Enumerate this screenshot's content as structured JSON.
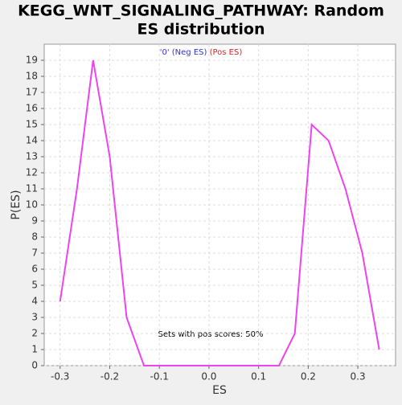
{
  "chart_data": {
    "type": "line",
    "title": [
      "KEGG_WNT_SIGNALING_PATHWAY: Random",
      "ES distribution"
    ],
    "legend": [
      {
        "label": "'0' (Neg ES)",
        "color": "#3333cc"
      },
      {
        "label": "(Pos ES)",
        "color": "#dd2222"
      }
    ],
    "annotation": "Sets with pos scores: 50%",
    "xlabel": "ES",
    "ylabel": "P(ES)",
    "x": [
      -0.3,
      -0.266,
      -0.2335,
      -0.2,
      -0.166,
      -0.131,
      -0.099,
      -0.065,
      -0.032,
      0.002,
      0.035,
      0.069,
      0.102,
      0.141,
      0.173,
      0.207,
      0.241,
      0.275,
      0.309,
      0.343
    ],
    "values": [
      4,
      11,
      19,
      13,
      3,
      0,
      0,
      0,
      0,
      0,
      0,
      0,
      0,
      0,
      2,
      15,
      14,
      11,
      7,
      1
    ],
    "color": "#ee44ee",
    "xlim": [
      -0.332,
      0.376
    ],
    "ylim": [
      0,
      20
    ],
    "xticks": [
      -0.3,
      -0.2,
      -0.1,
      {
        "value": 0,
        "label": "0.0"
      },
      0.1,
      0.2,
      0.3
    ],
    "yticks": [
      0,
      1,
      2,
      3,
      4,
      5,
      6,
      7,
      8,
      9,
      10,
      11,
      12,
      13,
      14,
      15,
      16,
      17,
      18,
      19
    ],
    "grid": true
  }
}
